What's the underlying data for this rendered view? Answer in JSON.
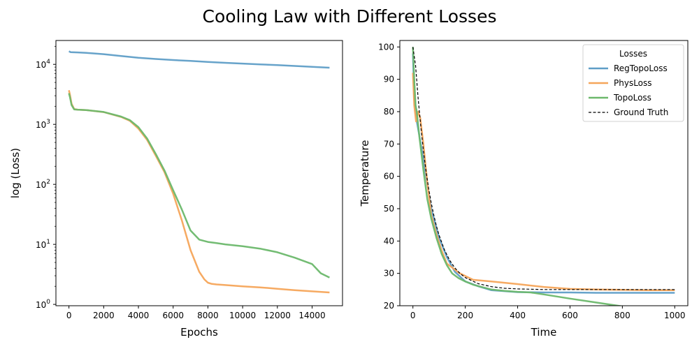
{
  "figure": {
    "suptitle": "Cooling Law with Different Losses"
  },
  "colors": {
    "RegTopoLoss": "#5f9ec7",
    "PhysLoss": "#f5a55a",
    "TopoLoss": "#6cb86b",
    "Ground Truth": "#000000"
  },
  "chart_data": [
    {
      "type": "line",
      "title": "",
      "xlabel": "Epochs",
      "ylabel": "log (Loss)",
      "xlim": [
        -750,
        15750
      ],
      "xticks": [
        0,
        2000,
        4000,
        6000,
        8000,
        10000,
        12000,
        14000
      ],
      "yscale": "log",
      "ylim": [
        0.95,
        25000
      ],
      "yticks": [
        1,
        10,
        100,
        1000,
        10000
      ],
      "ytick_labels": [
        {
          "base": "10",
          "exp": "0"
        },
        {
          "base": "10",
          "exp": "1"
        },
        {
          "base": "10",
          "exp": "2"
        },
        {
          "base": "10",
          "exp": "3"
        },
        {
          "base": "10",
          "exp": "4"
        }
      ],
      "grid": false,
      "series": [
        {
          "name": "RegTopoLoss",
          "x": [
            0,
            100,
            500,
            1000,
            2000,
            3000,
            4000,
            5000,
            6000,
            7000,
            8000,
            9000,
            10000,
            11000,
            12000,
            13000,
            14000,
            15000
          ],
          "y": [
            16500,
            16000,
            15800,
            15500,
            14800,
            13800,
            12900,
            12300,
            11800,
            11400,
            11000,
            10600,
            10300,
            10000,
            9700,
            9400,
            9100,
            8800
          ]
        },
        {
          "name": "PhysLoss",
          "x": [
            0,
            50,
            150,
            300,
            500,
            1000,
            2000,
            3000,
            3500,
            4000,
            4500,
            5000,
            5500,
            6000,
            6500,
            7000,
            7500,
            7800,
            8000,
            8200,
            8500,
            9000,
            10000,
            11000,
            12000,
            13000,
            14000,
            15000
          ],
          "y": [
            3700,
            3200,
            2200,
            1800,
            1760,
            1730,
            1600,
            1330,
            1150,
            850,
            550,
            300,
            160,
            70,
            25,
            8,
            3.5,
            2.6,
            2.3,
            2.2,
            2.15,
            2.1,
            2.0,
            1.92,
            1.82,
            1.72,
            1.65,
            1.58
          ]
        },
        {
          "name": "TopoLoss",
          "x": [
            0,
            50,
            150,
            300,
            500,
            1000,
            2000,
            3000,
            3500,
            4000,
            4500,
            5000,
            5500,
            6000,
            6500,
            7000,
            7500,
            8000,
            8500,
            9000,
            10000,
            11000,
            12000,
            13000,
            14000,
            14500,
            15000
          ],
          "y": [
            3300,
            2900,
            2100,
            1780,
            1760,
            1730,
            1610,
            1350,
            1180,
            900,
            580,
            320,
            170,
            80,
            38,
            17,
            12,
            11,
            10.5,
            10,
            9.3,
            8.5,
            7.4,
            6.0,
            4.7,
            3.3,
            2.8
          ]
        }
      ]
    },
    {
      "type": "line",
      "title": "",
      "xlabel": "Time",
      "ylabel": "Temperature",
      "xlim": [
        -50,
        1050
      ],
      "xticks": [
        0,
        200,
        400,
        600,
        800,
        1000
      ],
      "ylim": [
        20,
        102
      ],
      "yticks": [
        20,
        30,
        40,
        50,
        60,
        70,
        80,
        90,
        100
      ],
      "grid": false,
      "legend": {
        "title": "Losses",
        "placement": "top-right",
        "entries": [
          "RegTopoLoss",
          "PhysLoss",
          "TopoLoss",
          "Ground Truth"
        ]
      },
      "series": [
        {
          "name": "RegTopoLoss",
          "x": [
            0,
            5,
            15,
            30,
            50,
            70,
            100,
            130,
            160,
            200,
            250,
            300,
            350,
            400,
            500,
            600,
            700,
            800,
            900,
            1000
          ],
          "y": [
            98,
            85,
            77,
            70,
            60,
            50,
            41,
            35,
            30.5,
            27.5,
            26,
            24.8,
            24.5,
            24.2,
            24.1,
            24.1,
            24.0,
            24.0,
            24.0,
            24.0
          ]
        },
        {
          "name": "PhysLoss",
          "x": [
            0,
            5,
            12,
            20,
            28,
            40,
            55,
            70,
            90,
            110,
            130,
            150,
            175,
            200,
            230,
            300,
            400,
            500,
            600,
            700,
            800,
            900,
            1000
          ],
          "y": [
            92,
            82,
            77,
            80,
            78,
            70,
            58,
            48,
            42,
            37,
            33,
            31.8,
            30.2,
            29.2,
            28,
            27.5,
            26.7,
            25.8,
            25.2,
            25.0,
            24.9,
            24.8,
            24.8
          ]
        },
        {
          "name": "TopoLoss",
          "x": [
            0,
            5,
            10,
            15,
            25,
            40,
            55,
            70,
            90,
            110,
            130,
            150,
            175,
            200,
            230,
            300,
            350,
            400,
            450,
            500,
            600,
            700,
            800
          ],
          "y": [
            100,
            90,
            82,
            80,
            72,
            62,
            53,
            47,
            41,
            36,
            32.5,
            30,
            28.5,
            27.5,
            26.5,
            25,
            24.6,
            24.3,
            24.1,
            23.5,
            22.2,
            21,
            19.8
          ]
        },
        {
          "name": "Ground Truth",
          "x": [
            0,
            10,
            20,
            30,
            40,
            50,
            60,
            70,
            80,
            90,
            100,
            120,
            140,
            160,
            180,
            200,
            250,
            300,
            350,
            400,
            500,
            600,
            700,
            800,
            900,
            1000
          ],
          "y": [
            100,
            94.3,
            84.1,
            75.4,
            68.0,
            61.6,
            56.3,
            51.8,
            47.9,
            44.6,
            41.8,
            37.3,
            34.1,
            31.7,
            30.0,
            28.7,
            26.8,
            25.9,
            25.4,
            25.2,
            25.0,
            25.0,
            25.0,
            25.0,
            25.0,
            25.0
          ]
        }
      ]
    }
  ]
}
